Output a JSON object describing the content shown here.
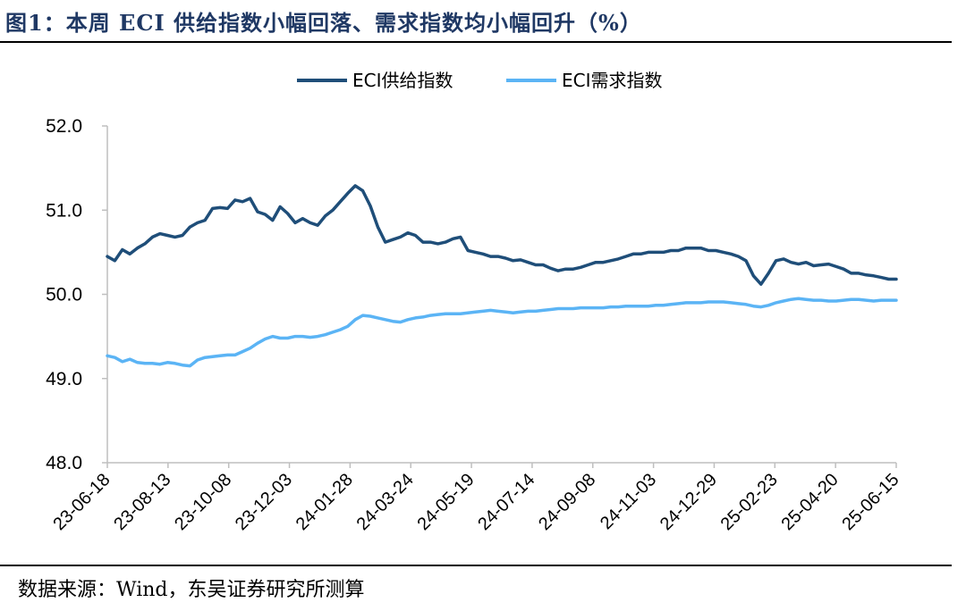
{
  "title": "图1：本周 ECI 供给指数小幅回落、需求指数均小幅回升（%）",
  "source": "数据来源：Wind，东吴证券研究所测算",
  "chart_data": {
    "type": "line",
    "ylim": [
      48.0,
      52.0
    ],
    "yticks": [
      "52.0",
      "51.0",
      "50.0",
      "49.0",
      "48.0"
    ],
    "ytick_values": [
      52.0,
      51.0,
      50.0,
      49.0,
      48.0
    ],
    "xticks": [
      "23-06-18",
      "23-08-13",
      "23-10-08",
      "23-12-03",
      "24-01-28",
      "24-03-24",
      "24-05-19",
      "24-07-14",
      "24-09-08",
      "24-11-03",
      "24-12-29",
      "25-02-23",
      "25-04-20",
      "25-06-15"
    ],
    "legend_position": "top",
    "colors": {
      "supply": "#1f4e79",
      "demand": "#5bb4f5"
    },
    "series": [
      {
        "name": "ECI供给指数",
        "values": [
          50.45,
          50.4,
          50.53,
          50.48,
          50.55,
          50.6,
          50.68,
          50.72,
          50.7,
          50.68,
          50.7,
          50.8,
          50.85,
          50.88,
          51.02,
          51.03,
          51.02,
          51.12,
          51.1,
          51.14,
          50.98,
          50.95,
          50.88,
          51.04,
          50.96,
          50.85,
          50.9,
          50.85,
          50.82,
          50.93,
          51.0,
          51.1,
          51.2,
          51.29,
          51.23,
          51.05,
          50.8,
          50.62,
          50.65,
          50.68,
          50.73,
          50.7,
          50.62,
          50.62,
          50.6,
          50.62,
          50.66,
          50.68,
          50.52,
          50.5,
          50.48,
          50.45,
          50.45,
          50.43,
          50.4,
          50.41,
          50.38,
          50.35,
          50.35,
          50.31,
          50.28,
          50.3,
          50.3,
          50.32,
          50.35,
          50.38,
          50.38,
          50.4,
          50.42,
          50.45,
          50.48,
          50.48,
          50.5,
          50.5,
          50.5,
          50.52,
          50.52,
          50.55,
          50.55,
          50.55,
          50.52,
          50.52,
          50.5,
          50.48,
          50.45,
          50.4,
          50.22,
          50.12,
          50.25,
          50.4,
          50.42,
          50.38,
          50.36,
          50.38,
          50.34,
          50.35,
          50.36,
          50.33,
          50.3,
          50.25,
          50.25,
          50.23,
          50.22,
          50.2,
          50.18,
          50.18
        ]
      },
      {
        "name": "ECI需求指数",
        "values": [
          49.27,
          49.25,
          49.2,
          49.23,
          49.19,
          49.18,
          49.18,
          49.17,
          49.19,
          49.18,
          49.16,
          49.15,
          49.22,
          49.25,
          49.26,
          49.27,
          49.28,
          49.28,
          49.32,
          49.36,
          49.42,
          49.47,
          49.5,
          49.48,
          49.48,
          49.5,
          49.5,
          49.49,
          49.5,
          49.52,
          49.55,
          49.58,
          49.62,
          49.7,
          49.75,
          49.74,
          49.72,
          49.7,
          49.68,
          49.67,
          49.7,
          49.72,
          49.73,
          49.75,
          49.76,
          49.77,
          49.77,
          49.77,
          49.78,
          49.79,
          49.8,
          49.81,
          49.8,
          49.79,
          49.78,
          49.79,
          49.8,
          49.8,
          49.81,
          49.82,
          49.83,
          49.83,
          49.83,
          49.84,
          49.84,
          49.84,
          49.84,
          49.85,
          49.85,
          49.86,
          49.86,
          49.86,
          49.86,
          49.87,
          49.87,
          49.88,
          49.89,
          49.9,
          49.9,
          49.9,
          49.91,
          49.91,
          49.91,
          49.9,
          49.89,
          49.88,
          49.86,
          49.85,
          49.87,
          49.9,
          49.92,
          49.94,
          49.95,
          49.94,
          49.93,
          49.93,
          49.92,
          49.92,
          49.93,
          49.94,
          49.94,
          49.93,
          49.92,
          49.93,
          49.93,
          49.93
        ]
      }
    ]
  }
}
